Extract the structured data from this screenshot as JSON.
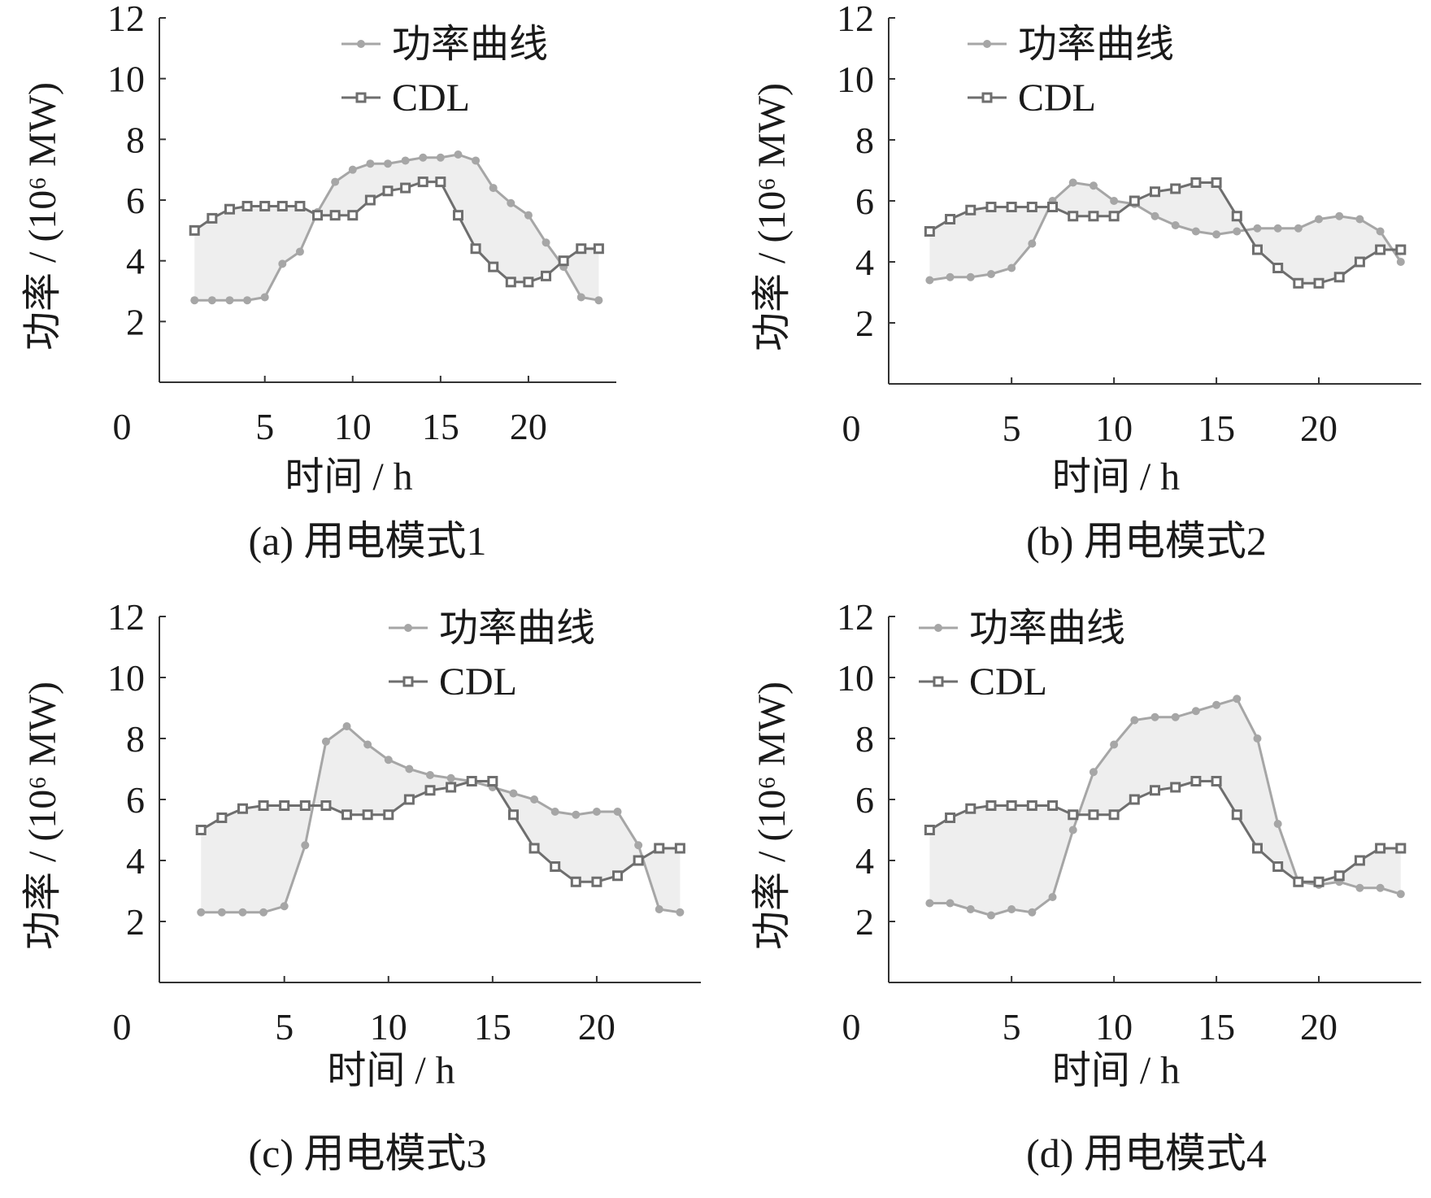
{
  "figure": {
    "colors": {
      "power": "#a6a6a6",
      "cdl": "#6e6e6e",
      "fill": "#eeeeee",
      "axis": "#333333",
      "text": "#1a1a1a"
    }
  },
  "chart_data": [
    {
      "id": "a",
      "type": "line",
      "caption": "(a)  用电模式1",
      "xlabel": "时间 / h",
      "ylabel": "功率 / (10⁶ MW)",
      "xlim": [
        -1,
        25
      ],
      "ylim": [
        0,
        12
      ],
      "xticks": [
        0,
        5,
        10,
        15,
        20
      ],
      "yticks": [
        2,
        4,
        6,
        8,
        10,
        12
      ],
      "legend": {
        "position": "top-center",
        "entries": [
          "功率曲线",
          "CDL"
        ]
      },
      "shaded_between": true,
      "series": [
        {
          "name": "功率曲线",
          "marker": "circle",
          "x": [
            1,
            2,
            3,
            4,
            5,
            6,
            7,
            8,
            9,
            10,
            11,
            12,
            13,
            14,
            15,
            16,
            17,
            18,
            19,
            20,
            21,
            22,
            23,
            24
          ],
          "values": [
            2.7,
            2.7,
            2.7,
            2.7,
            2.8,
            3.9,
            4.3,
            5.6,
            6.6,
            7.0,
            7.2,
            7.2,
            7.3,
            7.4,
            7.4,
            7.5,
            7.3,
            6.4,
            5.9,
            5.5,
            4.6,
            3.8,
            2.8,
            2.7
          ]
        },
        {
          "name": "CDL",
          "marker": "square",
          "x": [
            1,
            2,
            3,
            4,
            5,
            6,
            7,
            8,
            9,
            10,
            11,
            12,
            13,
            14,
            15,
            16,
            17,
            18,
            19,
            20,
            21,
            22,
            23,
            24
          ],
          "values": [
            5.0,
            5.4,
            5.7,
            5.8,
            5.8,
            5.8,
            5.8,
            5.5,
            5.5,
            5.5,
            6.0,
            6.3,
            6.4,
            6.6,
            6.6,
            5.5,
            4.4,
            3.8,
            3.3,
            3.3,
            3.5,
            4.0,
            4.4,
            4.4
          ]
        }
      ]
    },
    {
      "id": "b",
      "type": "line",
      "caption": "(b)  用电模式2",
      "xlabel": "时间 / h",
      "ylabel": "功率 / (10⁶ MW)",
      "xlim": [
        -1,
        25
      ],
      "ylim": [
        0,
        12
      ],
      "xticks": [
        0,
        5,
        10,
        15,
        20
      ],
      "yticks": [
        2,
        4,
        6,
        8,
        10,
        12
      ],
      "legend": {
        "position": "top-center",
        "entries": [
          "功率曲线",
          "CDL"
        ]
      },
      "shaded_between": true,
      "series": [
        {
          "name": "功率曲线",
          "marker": "circle",
          "x": [
            1,
            2,
            3,
            4,
            5,
            6,
            7,
            8,
            9,
            10,
            11,
            12,
            13,
            14,
            15,
            16,
            17,
            18,
            19,
            20,
            21,
            22,
            23,
            24
          ],
          "values": [
            3.4,
            3.5,
            3.5,
            3.6,
            3.8,
            4.6,
            6.0,
            6.6,
            6.5,
            6.0,
            5.9,
            5.5,
            5.2,
            5.0,
            4.9,
            5.0,
            5.1,
            5.1,
            5.1,
            5.4,
            5.5,
            5.4,
            5.0,
            4.0
          ]
        },
        {
          "name": "CDL",
          "marker": "square",
          "x": [
            1,
            2,
            3,
            4,
            5,
            6,
            7,
            8,
            9,
            10,
            11,
            12,
            13,
            14,
            15,
            16,
            17,
            18,
            19,
            20,
            21,
            22,
            23,
            24
          ],
          "values": [
            5.0,
            5.4,
            5.7,
            5.8,
            5.8,
            5.8,
            5.8,
            5.5,
            5.5,
            5.5,
            6.0,
            6.3,
            6.4,
            6.6,
            6.6,
            5.5,
            4.4,
            3.8,
            3.3,
            3.3,
            3.5,
            4.0,
            4.4,
            4.4
          ]
        }
      ]
    },
    {
      "id": "c",
      "type": "line",
      "caption": "(c)  用电模式3",
      "xlabel": "时间 / h",
      "ylabel": "功率 / (10⁶ MW)",
      "xlim": [
        -1,
        25
      ],
      "ylim": [
        0,
        12
      ],
      "xticks": [
        0,
        5,
        10,
        15,
        20
      ],
      "yticks": [
        2,
        4,
        6,
        8,
        10,
        12
      ],
      "legend": {
        "position": "top-center",
        "entries": [
          "功率曲线",
          "CDL"
        ]
      },
      "shaded_between": true,
      "series": [
        {
          "name": "功率曲线",
          "marker": "circle",
          "x": [
            1,
            2,
            3,
            4,
            5,
            6,
            7,
            8,
            9,
            10,
            11,
            12,
            13,
            14,
            15,
            16,
            17,
            18,
            19,
            20,
            21,
            22,
            23,
            24
          ],
          "values": [
            2.3,
            2.3,
            2.3,
            2.3,
            2.5,
            4.5,
            7.9,
            8.4,
            7.8,
            7.3,
            7.0,
            6.8,
            6.7,
            6.6,
            6.4,
            6.2,
            6.0,
            5.6,
            5.5,
            5.6,
            5.6,
            4.5,
            2.4,
            2.3
          ]
        },
        {
          "name": "CDL",
          "marker": "square",
          "x": [
            1,
            2,
            3,
            4,
            5,
            6,
            7,
            8,
            9,
            10,
            11,
            12,
            13,
            14,
            15,
            16,
            17,
            18,
            19,
            20,
            21,
            22,
            23,
            24
          ],
          "values": [
            5.0,
            5.4,
            5.7,
            5.8,
            5.8,
            5.8,
            5.8,
            5.5,
            5.5,
            5.5,
            6.0,
            6.3,
            6.4,
            6.6,
            6.6,
            5.5,
            4.4,
            3.8,
            3.3,
            3.3,
            3.5,
            4.0,
            4.4,
            4.4
          ]
        }
      ]
    },
    {
      "id": "d",
      "type": "line",
      "caption": "(d)  用电模式4",
      "xlabel": "时间 / h",
      "ylabel": "功率 / (10⁶ MW)",
      "xlim": [
        -1,
        25
      ],
      "ylim": [
        0,
        12
      ],
      "xticks": [
        0,
        5,
        10,
        15,
        20
      ],
      "yticks": [
        2,
        4,
        6,
        8,
        10,
        12
      ],
      "legend": {
        "position": "top-left",
        "entries": [
          "功率曲线",
          "CDL"
        ]
      },
      "shaded_between": true,
      "series": [
        {
          "name": "功率曲线",
          "marker": "circle",
          "x": [
            1,
            2,
            3,
            4,
            5,
            6,
            7,
            8,
            9,
            10,
            11,
            12,
            13,
            14,
            15,
            16,
            17,
            18,
            19,
            20,
            21,
            22,
            23,
            24
          ],
          "values": [
            2.6,
            2.6,
            2.4,
            2.2,
            2.4,
            2.3,
            2.8,
            5.0,
            6.9,
            7.8,
            8.6,
            8.7,
            8.7,
            8.9,
            9.1,
            9.3,
            8.0,
            5.2,
            3.3,
            3.2,
            3.3,
            3.1,
            3.1,
            2.9
          ]
        },
        {
          "name": "CDL",
          "marker": "square",
          "x": [
            1,
            2,
            3,
            4,
            5,
            6,
            7,
            8,
            9,
            10,
            11,
            12,
            13,
            14,
            15,
            16,
            17,
            18,
            19,
            20,
            21,
            22,
            23,
            24
          ],
          "values": [
            5.0,
            5.4,
            5.7,
            5.8,
            5.8,
            5.8,
            5.8,
            5.5,
            5.5,
            5.5,
            6.0,
            6.3,
            6.4,
            6.6,
            6.6,
            5.5,
            4.4,
            3.8,
            3.3,
            3.3,
            3.5,
            4.0,
            4.4,
            4.4
          ]
        }
      ]
    }
  ]
}
